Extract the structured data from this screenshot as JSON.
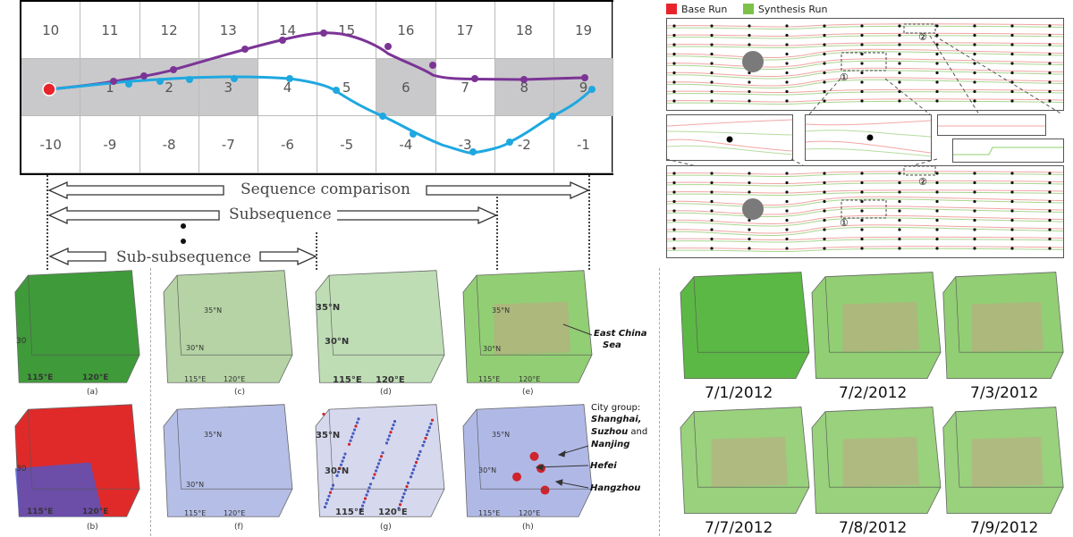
{
  "grid": {
    "top_row": [
      "10",
      "11",
      "12",
      "13",
      "14",
      "15",
      "16",
      "17",
      "18",
      "19"
    ],
    "mid_row": [
      "0",
      "1",
      "2",
      "3",
      "4",
      "5",
      "6",
      "7",
      "8",
      "9"
    ],
    "bottom_row": [
      "-10",
      "-9",
      "-8",
      "-7",
      "-6",
      "-5",
      "-4",
      "-3",
      "-2",
      "-1"
    ],
    "mid_gray": [
      true,
      true,
      true,
      true,
      false,
      false,
      true,
      false,
      true,
      true
    ]
  },
  "arrows": {
    "sequence": "Sequence comparison",
    "subsequence": "Subsequence",
    "subsub": "Sub-subsequence"
  },
  "panels": {
    "a": "(a)",
    "b": "(b)",
    "c": "(c)",
    "d": "(d)",
    "e": "(e)",
    "f": "(f)",
    "g": "(g)",
    "h": "(h)",
    "lat35": "35°N",
    "lat30": "30°N",
    "lon115": "115°E",
    "lon120": "120°E",
    "lat30b": "30"
  },
  "annotations": {
    "east_china_sea": [
      "East China",
      "Sea"
    ],
    "city_group_label": "City group:",
    "city_group_line1": "Shanghai,",
    "city_group_line2a": "Suzhou",
    "city_group_line2b": " and",
    "city_group_line3": "Nanjing",
    "hefei": "Hefei",
    "hangzhou": "Hangzhou"
  },
  "legend": {
    "base": "Base Run",
    "synthesis": "Synthesis Run",
    "base_color": "#e8242b",
    "synthesis_color": "#7cc24a"
  },
  "flow_markers": {
    "one": "①",
    "two": "②"
  },
  "dates": [
    "7/1/2012",
    "7/2/2012",
    "7/3/2012",
    "7/7/2012",
    "7/8/2012",
    "7/9/2012"
  ],
  "colors": {
    "purple": "#7b3496",
    "cyan": "#1fa8e0",
    "gray_cell": "#c9c9cb"
  }
}
